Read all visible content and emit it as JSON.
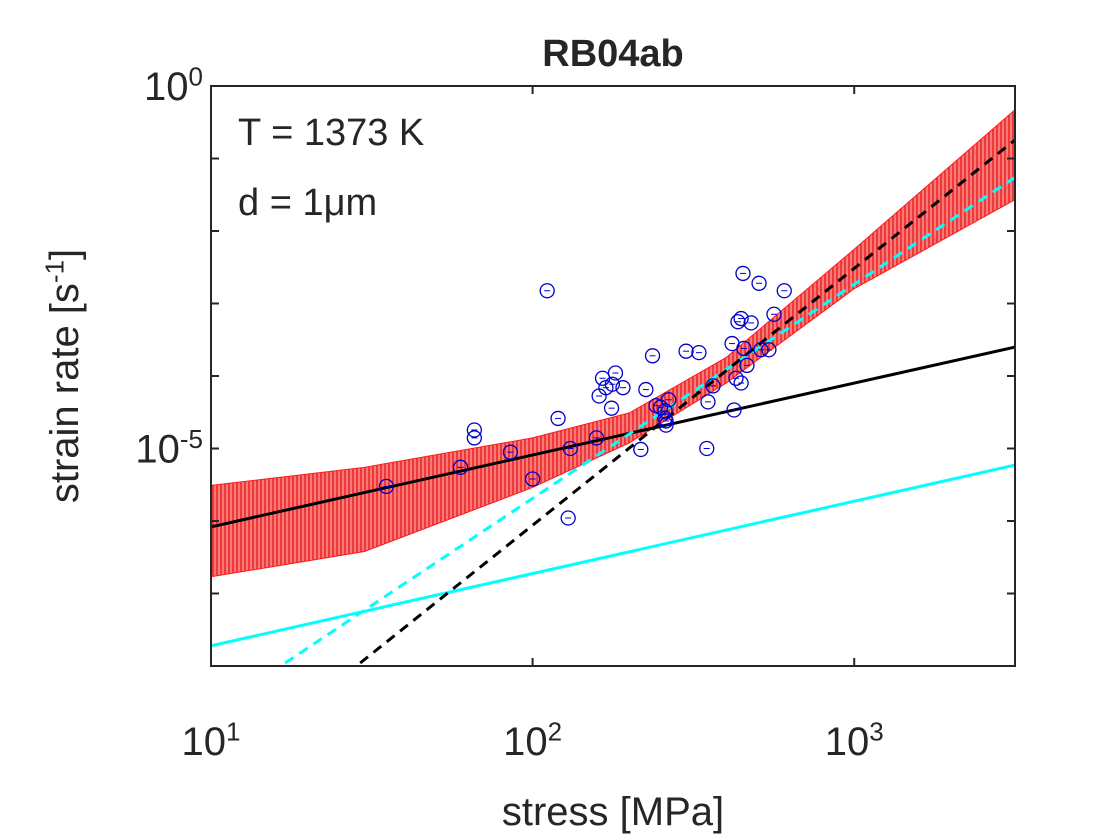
{
  "chart_data": {
    "type": "scatter",
    "title": "RB04ab",
    "xlabel": "stress [MPa]",
    "ylabel": "strain rate [s^-1]",
    "annotations": [
      "T = 1373 K",
      "d = 1μm"
    ],
    "xscale": "log",
    "yscale": "log",
    "xlim": [
      10,
      3162
    ],
    "ylim": [
      1e-08,
      1
    ],
    "xticks": [
      {
        "value": 10,
        "label": "10^1"
      },
      {
        "value": 100,
        "label": "10^2"
      },
      {
        "value": 1000,
        "label": "10^3"
      }
    ],
    "yticks": [
      {
        "value": 1e-05,
        "label": "10^-5"
      },
      {
        "value": 1,
        "label": "10^0"
      }
    ],
    "yminorticks": [
      1e-07,
      1e-06,
      0.0001,
      0.001,
      0.01,
      0.1
    ],
    "band": {
      "color": "#ff0000",
      "x": [
        10,
        30,
        100,
        200,
        400,
        1000,
        3162
      ],
      "upper": [
        3.1e-06,
        5.5e-06,
        1.4e-05,
        3.1e-05,
        0.00018,
        0.0056,
        0.47
      ],
      "lower": [
        1.7e-07,
        3.8e-07,
        2.9e-06,
        1.2e-05,
        8e-05,
        0.0016,
        0.027
      ]
    },
    "lines": [
      {
        "color": "#000000",
        "dash": false,
        "x": [
          10,
          3162
        ],
        "y": [
          8.3e-07,
          0.00025
        ]
      },
      {
        "color": "#00ffff",
        "dash": false,
        "x": [
          10,
          3162
        ],
        "y": [
          1.9e-08,
          5.9e-06
        ]
      },
      {
        "color": "#00ffff",
        "dash": true,
        "x": [
          17,
          3162
        ],
        "y": [
          1.1e-08,
          0.055
        ]
      },
      {
        "color": "#000000",
        "dash": true,
        "x": [
          29.1,
          3162
        ],
        "y": [
          1.1e-08,
          0.18
        ]
      }
    ],
    "points": {
      "color": "#0000cc",
      "x": [
        35.1,
        59.7,
        65.9,
        65.9,
        85.3,
        100,
        111,
        120,
        129,
        131,
        158,
        161,
        165,
        169,
        176,
        177,
        181,
        191,
        217,
        225,
        242,
        236,
        250,
        258,
        260,
        260,
        265,
        258,
        300,
        329,
        348,
        351,
        364,
        417,
        423,
        429,
        435,
        445,
        445,
        451,
        454,
        464,
        478,
        506,
        543,
        563,
        606,
        513
      ],
      "y": [
        3e-06,
        5.5e-06,
        1.4e-05,
        1.8e-05,
        8.9e-06,
        3.8e-06,
        0.0015,
        2.6e-05,
        1.1e-06,
        1e-05,
        1.4e-05,
        5.3e-05,
        9.3e-05,
        6.9e-05,
        3.6e-05,
        7.7e-05,
        0.00011,
        6.9e-05,
        9.7e-06,
        6.5e-05,
        3.9e-05,
        0.00019,
        3.7e-05,
        2.6e-05,
        2.1e-05,
        2.4e-05,
        4.7e-05,
        3.3e-05,
        0.00022,
        0.00021,
        1e-05,
        4.4e-05,
        7.3e-05,
        0.00028,
        3.4e-05,
        9.3e-05,
        0.00056,
        0.00062,
        8e-05,
        0.0026,
        0.00024,
        0.00014,
        0.00054,
        0.0019,
        0.00023,
        0.00071,
        0.0015,
        0.00023
      ]
    }
  }
}
